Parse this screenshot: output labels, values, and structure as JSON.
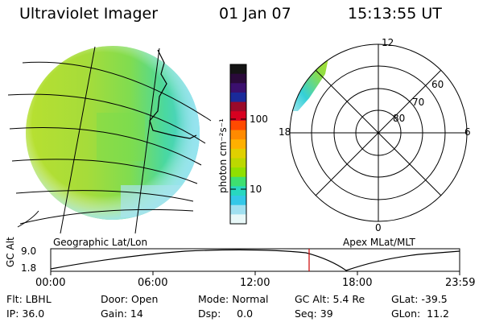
{
  "header": {
    "instrument": "Ultraviolet Imager",
    "date": "01 Jan 07",
    "time": "15:13:55 UT"
  },
  "colorbar": {
    "unit_label": "photon cm⁻²s⁻¹",
    "tick_labels": [
      "100",
      "10"
    ],
    "colors": [
      "#141414",
      "#2a0a3a",
      "#3b0f6e",
      "#1a2a9a",
      "#9a0a2a",
      "#d80020",
      "#ff4a00",
      "#ff8a00",
      "#ffb000",
      "#e0d000",
      "#bcd800",
      "#90e000",
      "#3ee070",
      "#28d8c0",
      "#34c8e8",
      "#a0e0f0",
      "#e8f8f8"
    ]
  },
  "map_left": {
    "label": "Geographic Lat/Lon"
  },
  "map_right": {
    "label": "Apex MLat/MLT",
    "mlt_labels": [
      "12",
      "18",
      "6",
      "0"
    ],
    "mlat_labels": [
      "60",
      "70",
      "80"
    ]
  },
  "altitude_plot": {
    "ylabel": "GC Alt",
    "y_ticks": [
      "9.0",
      "1.8"
    ],
    "x_ticks": [
      "00:00",
      "06:00",
      "12:00",
      "18:00",
      "23:59"
    ],
    "marker_color": "#cc0000"
  },
  "status": {
    "flt": "Flt: LBHL",
    "door": "Door: Open",
    "mode": "Mode: Normal",
    "gc_alt": "GC Alt: 5.4 Re",
    "glat": "GLat: -39.5",
    "ip": "IP: 36.0",
    "gain": "Gain: 14",
    "dsp": "Dsp:     0.0",
    "seq": "Seq: 39",
    "glon": "GLon:  11.2"
  }
}
